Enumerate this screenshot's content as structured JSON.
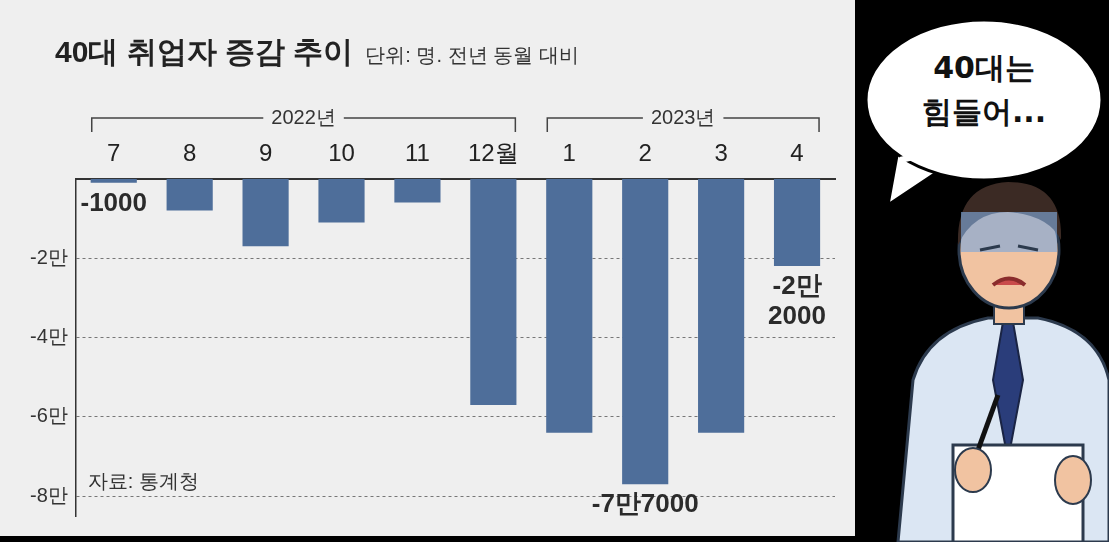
{
  "chart_data": {
    "type": "bar",
    "title": "40대 취업자 증감 추이",
    "subtitle": "단위: 명. 전년 동월 대비",
    "source": "자료: 통계청",
    "annotation": "40대는 힘들어...",
    "categories": [
      "7",
      "8",
      "9",
      "10",
      "11",
      "12월",
      "1",
      "2",
      "3",
      "4"
    ],
    "groups": [
      {
        "label": "2022년",
        "categories": [
          "7",
          "8",
          "9",
          "10",
          "11",
          "12월"
        ]
      },
      {
        "label": "2023년",
        "categories": [
          "1",
          "2",
          "3",
          "4"
        ]
      }
    ],
    "values": [
      -1000,
      -8000,
      -17000,
      -11000,
      -6000,
      -57000,
      -64000,
      -77000,
      -64000,
      -22000
    ],
    "value_labels": [
      "-1000",
      null,
      null,
      null,
      null,
      null,
      null,
      "-7만7000",
      null,
      "-2만 2000"
    ],
    "color": "#4e6e9a",
    "ylim": [
      -85000,
      0
    ],
    "yticks": [
      {
        "value": -80000,
        "label": "-8만"
      },
      {
        "value": -60000,
        "label": "-6만"
      },
      {
        "value": -40000,
        "label": "-4만"
      },
      {
        "value": -20000,
        "label": "-2만"
      }
    ],
    "grid": true
  }
}
